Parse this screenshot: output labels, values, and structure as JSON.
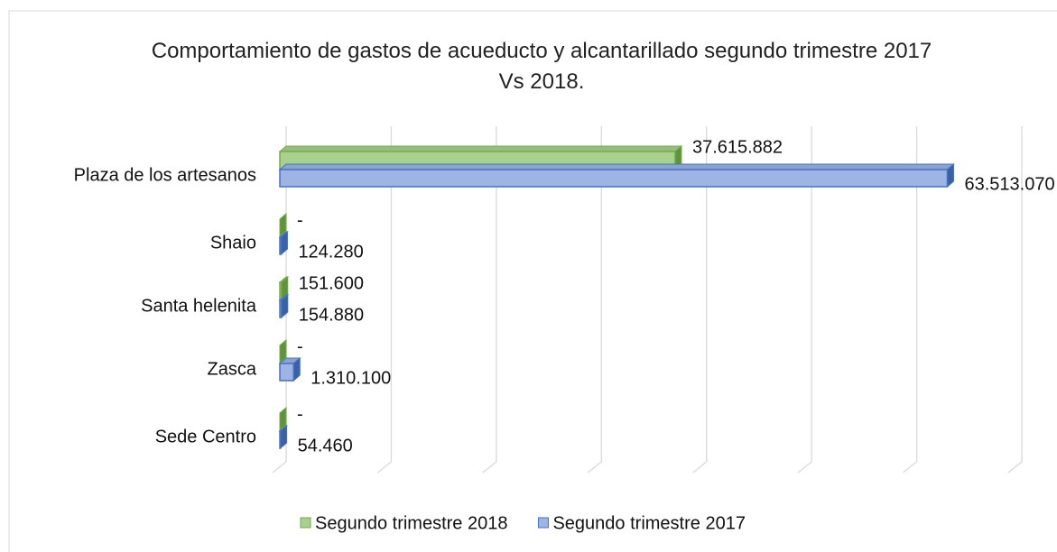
{
  "chart_data": {
    "type": "bar3d_horizontal",
    "title": "Comportamiento de gastos de acueducto y alcantarillado segundo trimestre 2017 Vs 2018.",
    "categories": [
      "Plaza de los artesanos",
      "Shaio",
      "Santa helenita",
      "Zasca",
      "Sede Centro"
    ],
    "series": [
      {
        "name": "Segundo trimestre 2018",
        "color": "#a9d18e",
        "edge": "#70ad47",
        "values": [
          37615882,
          0,
          151600,
          0,
          0
        ],
        "value_labels": [
          "37.615.882",
          "-",
          "151.600",
          "-",
          "-"
        ]
      },
      {
        "name": "Segundo trimestre 2017",
        "color": "#9db4e4",
        "edge": "#4472c4",
        "values": [
          63513070,
          124280,
          154880,
          1310100,
          54460
        ],
        "value_labels": [
          "63.513.070",
          "124.280",
          "154.880",
          "1.310.100",
          "54.460"
        ]
      }
    ],
    "xlim": [
      0,
      70000000
    ],
    "xticks": [
      0,
      10000000,
      20000000,
      30000000,
      40000000,
      50000000,
      60000000,
      70000000
    ],
    "grid": true
  }
}
